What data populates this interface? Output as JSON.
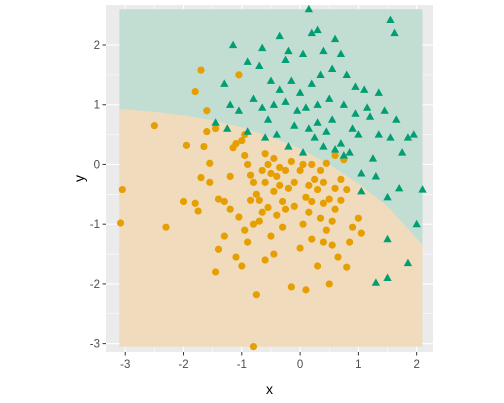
{
  "chart_data": {
    "type": "scatter",
    "title": "",
    "xlabel": "x",
    "ylabel": "y",
    "xlim": [
      -3.33,
      2.28
    ],
    "ylim": [
      -3.14,
      2.67
    ],
    "x_ticks": [
      -3,
      -2,
      -1,
      0,
      1,
      2
    ],
    "y_ticks": [
      -3,
      -2,
      -1,
      0,
      1,
      2
    ],
    "grid": true,
    "legend": "none",
    "colors": {
      "panel": "#ebebeb",
      "grid": "#ffffff",
      "class_a": "#e69f00",
      "class_b": "#009e73",
      "region_a": "#f0dcbc",
      "region_b": "#c2ded3"
    },
    "region_grid": {
      "x_range": [
        -3.1,
        2.1
      ],
      "y_range": [
        -3.05,
        2.6
      ]
    },
    "decision_boundary": [
      [
        -3.1,
        0.93
      ],
      [
        -2.5,
        0.88
      ],
      [
        -2.0,
        0.82
      ],
      [
        -1.5,
        0.74
      ],
      [
        -1.0,
        0.62
      ],
      [
        -0.5,
        0.46
      ],
      [
        0.0,
        0.26
      ],
      [
        0.5,
        0.0
      ],
      [
        1.0,
        -0.32
      ],
      [
        1.5,
        -0.7
      ],
      [
        2.1,
        -1.35
      ]
    ],
    "series": [
      {
        "class": "orange",
        "marker": "circle",
        "points": [
          [
            -3.05,
            -0.42
          ],
          [
            -3.08,
            -0.98
          ],
          [
            -2.5,
            0.65
          ],
          [
            -2.3,
            -1.05
          ],
          [
            -2.0,
            -0.62
          ],
          [
            -1.95,
            0.32
          ],
          [
            -1.8,
            1.22
          ],
          [
            -1.7,
            1.58
          ],
          [
            -1.6,
            0.9
          ],
          [
            -1.6,
            0.55
          ],
          [
            -1.7,
            -0.22
          ],
          [
            -1.55,
            -0.3
          ],
          [
            -1.65,
            0.3
          ],
          [
            -1.55,
            0.02
          ],
          [
            -1.45,
            0.6
          ],
          [
            -1.8,
            -0.65
          ],
          [
            -1.75,
            -0.78
          ],
          [
            -1.4,
            -0.58
          ],
          [
            -1.3,
            -0.62
          ],
          [
            -1.2,
            -0.2
          ],
          [
            -1.1,
            0.35
          ],
          [
            -1.05,
            1.5
          ],
          [
            -1.0,
            0.4
          ],
          [
            -0.95,
            0.15
          ],
          [
            -0.9,
            0.0
          ],
          [
            -0.85,
            -0.18
          ],
          [
            -0.8,
            -0.3
          ],
          [
            -0.75,
            -0.5
          ],
          [
            -0.7,
            -0.6
          ],
          [
            -0.6,
            -0.3
          ],
          [
            -0.5,
            -0.15
          ],
          [
            -0.45,
            -0.45
          ],
          [
            -0.4,
            -0.85
          ],
          [
            -0.3,
            -0.62
          ],
          [
            -0.2,
            -0.4
          ],
          [
            -0.1,
            -0.3
          ],
          [
            0.0,
            -0.1
          ],
          [
            0.1,
            -0.55
          ],
          [
            0.15,
            -0.8
          ],
          [
            0.2,
            -0.62
          ],
          [
            0.3,
            -0.42
          ],
          [
            0.4,
            -0.3
          ],
          [
            0.5,
            -0.58
          ],
          [
            0.6,
            -0.75
          ],
          [
            0.7,
            -0.6
          ],
          [
            0.8,
            -0.42
          ],
          [
            0.9,
            -1.05
          ],
          [
            1.0,
            -0.9
          ],
          [
            1.05,
            -1.15
          ],
          [
            -1.3,
            -1.2
          ],
          [
            -1.4,
            -1.42
          ],
          [
            -1.45,
            -1.8
          ],
          [
            -1.1,
            -1.55
          ],
          [
            -1.0,
            -1.7
          ],
          [
            -0.9,
            -1.3
          ],
          [
            -0.8,
            -1.0
          ],
          [
            -0.6,
            -1.6
          ],
          [
            -0.5,
            -1.2
          ],
          [
            -0.45,
            -1.5
          ],
          [
            -0.3,
            -1.05
          ],
          [
            -0.15,
            -2.05
          ],
          [
            0.1,
            -2.1
          ],
          [
            0.0,
            -1.4
          ],
          [
            0.2,
            -1.25
          ],
          [
            0.3,
            -1.7
          ],
          [
            0.4,
            -1.3
          ],
          [
            0.5,
            -2.0
          ],
          [
            0.55,
            -1.35
          ],
          [
            0.65,
            -1.55
          ],
          [
            0.8,
            -1.72
          ],
          [
            -0.75,
            -2.18
          ],
          [
            -0.8,
            -3.05
          ],
          [
            -1.2,
            -0.75
          ],
          [
            -1.05,
            -0.88
          ],
          [
            -0.95,
            -1.1
          ],
          [
            -0.7,
            -0.95
          ],
          [
            -0.65,
            -0.8
          ],
          [
            -0.55,
            -0.72
          ],
          [
            -0.35,
            -0.35
          ],
          [
            -0.25,
            -0.1
          ],
          [
            0.05,
            0.0
          ],
          [
            0.2,
            0.0
          ],
          [
            0.35,
            -0.1
          ],
          [
            0.45,
            0.02
          ],
          [
            0.6,
            0.15
          ],
          [
            0.75,
            0.08
          ],
          [
            0.25,
            -0.25
          ],
          [
            -0.15,
            0.05
          ],
          [
            -0.6,
            0.18
          ],
          [
            -0.45,
            0.1
          ],
          [
            -0.35,
            -0.05
          ],
          [
            -0.95,
            0.5
          ],
          [
            -1.15,
            0.28
          ],
          [
            0.55,
            -0.95
          ],
          [
            0.4,
            -0.65
          ],
          [
            0.7,
            -0.25
          ],
          [
            -0.55,
            0.0
          ],
          [
            -0.25,
            -0.75
          ],
          [
            0.05,
            -1.0
          ],
          [
            0.35,
            -0.9
          ],
          [
            -0.1,
            -0.7
          ],
          [
            -0.85,
            -0.6
          ],
          [
            -0.4,
            -0.2
          ],
          [
            0.6,
            -0.4
          ],
          [
            0.15,
            -0.35
          ],
          [
            -0.65,
            -0.1
          ],
          [
            0.45,
            -1.1
          ],
          [
            0.85,
            -1.3
          ]
        ]
      },
      {
        "class": "green",
        "marker": "triangle",
        "points": [
          [
            0.15,
            2.6
          ],
          [
            0.2,
            2.2
          ],
          [
            0.3,
            2.25
          ],
          [
            0.6,
            2.1
          ],
          [
            1.55,
            2.42
          ],
          [
            1.62,
            2.2
          ],
          [
            -1.15,
            2.0
          ],
          [
            -0.35,
            2.15
          ],
          [
            -0.2,
            1.9
          ],
          [
            -0.65,
            1.95
          ],
          [
            -0.7,
            1.65
          ],
          [
            -0.25,
            1.75
          ],
          [
            0.05,
            1.85
          ],
          [
            0.4,
            1.9
          ],
          [
            0.7,
            1.85
          ],
          [
            -0.9,
            1.72
          ],
          [
            -0.5,
            1.4
          ],
          [
            -0.35,
            1.25
          ],
          [
            -0.15,
            1.4
          ],
          [
            0.0,
            1.2
          ],
          [
            0.2,
            1.35
          ],
          [
            0.35,
            1.5
          ],
          [
            0.55,
            1.6
          ],
          [
            0.8,
            1.5
          ],
          [
            0.95,
            1.3
          ],
          [
            1.1,
            1.25
          ],
          [
            1.35,
            1.2
          ],
          [
            -1.3,
            1.35
          ],
          [
            -1.2,
            1.0
          ],
          [
            -1.05,
            0.9
          ],
          [
            -0.8,
            1.1
          ],
          [
            -0.65,
            0.95
          ],
          [
            -0.45,
            1.0
          ],
          [
            -0.25,
            1.05
          ],
          [
            -0.05,
            0.9
          ],
          [
            0.1,
            0.95
          ],
          [
            0.3,
            1.0
          ],
          [
            0.5,
            1.1
          ],
          [
            0.75,
            1.0
          ],
          [
            0.95,
            0.85
          ],
          [
            1.2,
            0.8
          ],
          [
            1.45,
            0.9
          ],
          [
            1.65,
            0.75
          ],
          [
            1.85,
            0.45
          ],
          [
            1.95,
            0.5
          ],
          [
            1.75,
            0.2
          ],
          [
            1.55,
            0.45
          ],
          [
            1.35,
            0.5
          ],
          [
            -1.45,
            0.7
          ],
          [
            -1.25,
            0.6
          ],
          [
            -0.9,
            0.55
          ],
          [
            -0.6,
            0.45
          ],
          [
            -0.4,
            0.5
          ],
          [
            -0.2,
            0.3
          ],
          [
            0.05,
            0.2
          ],
          [
            0.25,
            0.45
          ],
          [
            0.45,
            0.55
          ],
          [
            0.7,
            0.35
          ],
          [
            1.0,
            0.5
          ],
          [
            1.25,
            0.1
          ],
          [
            0.6,
            0.25
          ],
          [
            0.85,
            0.2
          ],
          [
            1.05,
            -0.15
          ],
          [
            1.3,
            -0.2
          ],
          [
            1.7,
            -0.4
          ],
          [
            2.1,
            -0.42
          ],
          [
            1.5,
            -0.55
          ],
          [
            1.05,
            -0.45
          ],
          [
            1.5,
            -1.9
          ],
          [
            1.3,
            -1.98
          ],
          [
            1.85,
            -1.65
          ],
          [
            1.5,
            -1.25
          ],
          [
            2.0,
            -1.0
          ],
          [
            0.75,
            0.15
          ],
          [
            0.55,
            0.75
          ],
          [
            0.3,
            0.7
          ],
          [
            -0.1,
            0.65
          ],
          [
            0.15,
            0.6
          ],
          [
            0.4,
            0.3
          ],
          [
            -0.55,
            0.75
          ],
          [
            1.15,
            0.95
          ],
          [
            0.9,
            0.6
          ]
        ]
      }
    ]
  }
}
